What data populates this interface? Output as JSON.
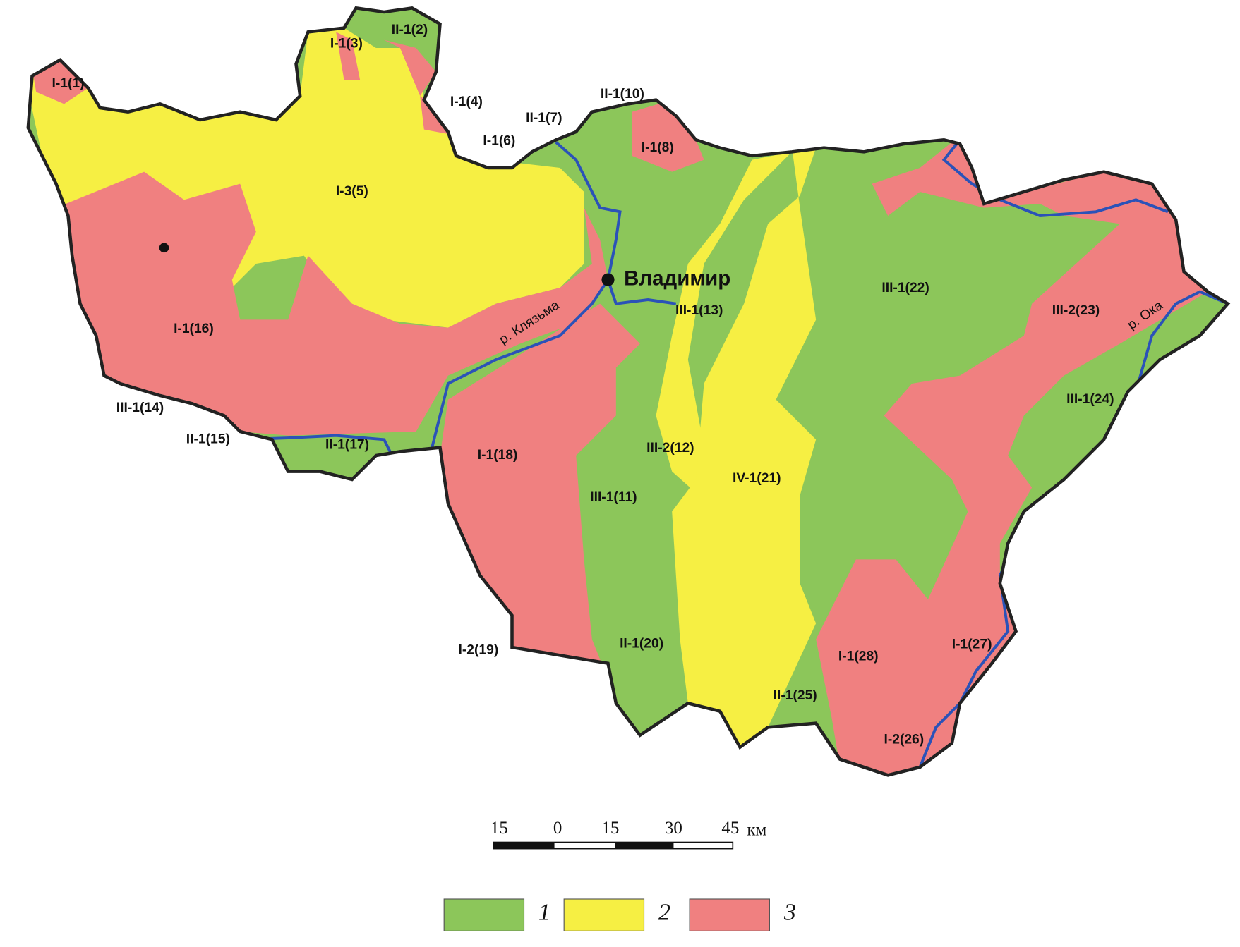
{
  "regions": [
    {
      "label": "I-1(1)"
    },
    {
      "label": "II-1(2)"
    },
    {
      "label": "I-1(3)"
    },
    {
      "label": "I-1(4)"
    },
    {
      "label": "I-3(5)"
    },
    {
      "label": "I-1(6)"
    },
    {
      "label": "II-1(7)"
    },
    {
      "label": "I-1(8)"
    },
    {
      "label": "II-1(10)"
    },
    {
      "label": "III-1(11)"
    },
    {
      "label": "III-2(12)"
    },
    {
      "label": "III-1(13)"
    },
    {
      "label": "III-1(14)"
    },
    {
      "label": "II-1(15)"
    },
    {
      "label": "I-1(16)"
    },
    {
      "label": "II-1(17)"
    },
    {
      "label": "I-1(18)"
    },
    {
      "label": "I-2(19)"
    },
    {
      "label": "II-1(20)"
    },
    {
      "label": "IV-1(21)"
    },
    {
      "label": "III-1(22)"
    },
    {
      "label": "III-2(23)"
    },
    {
      "label": "III-1(24)"
    },
    {
      "label": "II-1(25)"
    },
    {
      "label": "I-2(26)"
    },
    {
      "label": "I-1(27)"
    },
    {
      "label": "I-1(28)"
    }
  ],
  "city": "Владимир",
  "rivers": [
    "р. Клязьма",
    "р. Ока"
  ],
  "scale_bar": {
    "labels": [
      "15",
      "0",
      "15",
      "30",
      "45"
    ],
    "unit": "км"
  },
  "legend": [
    {
      "label": "1",
      "color": "#8cc65a"
    },
    {
      "label": "2",
      "color": "#f6ef43"
    },
    {
      "label": "3",
      "color": "#f08080"
    }
  ]
}
